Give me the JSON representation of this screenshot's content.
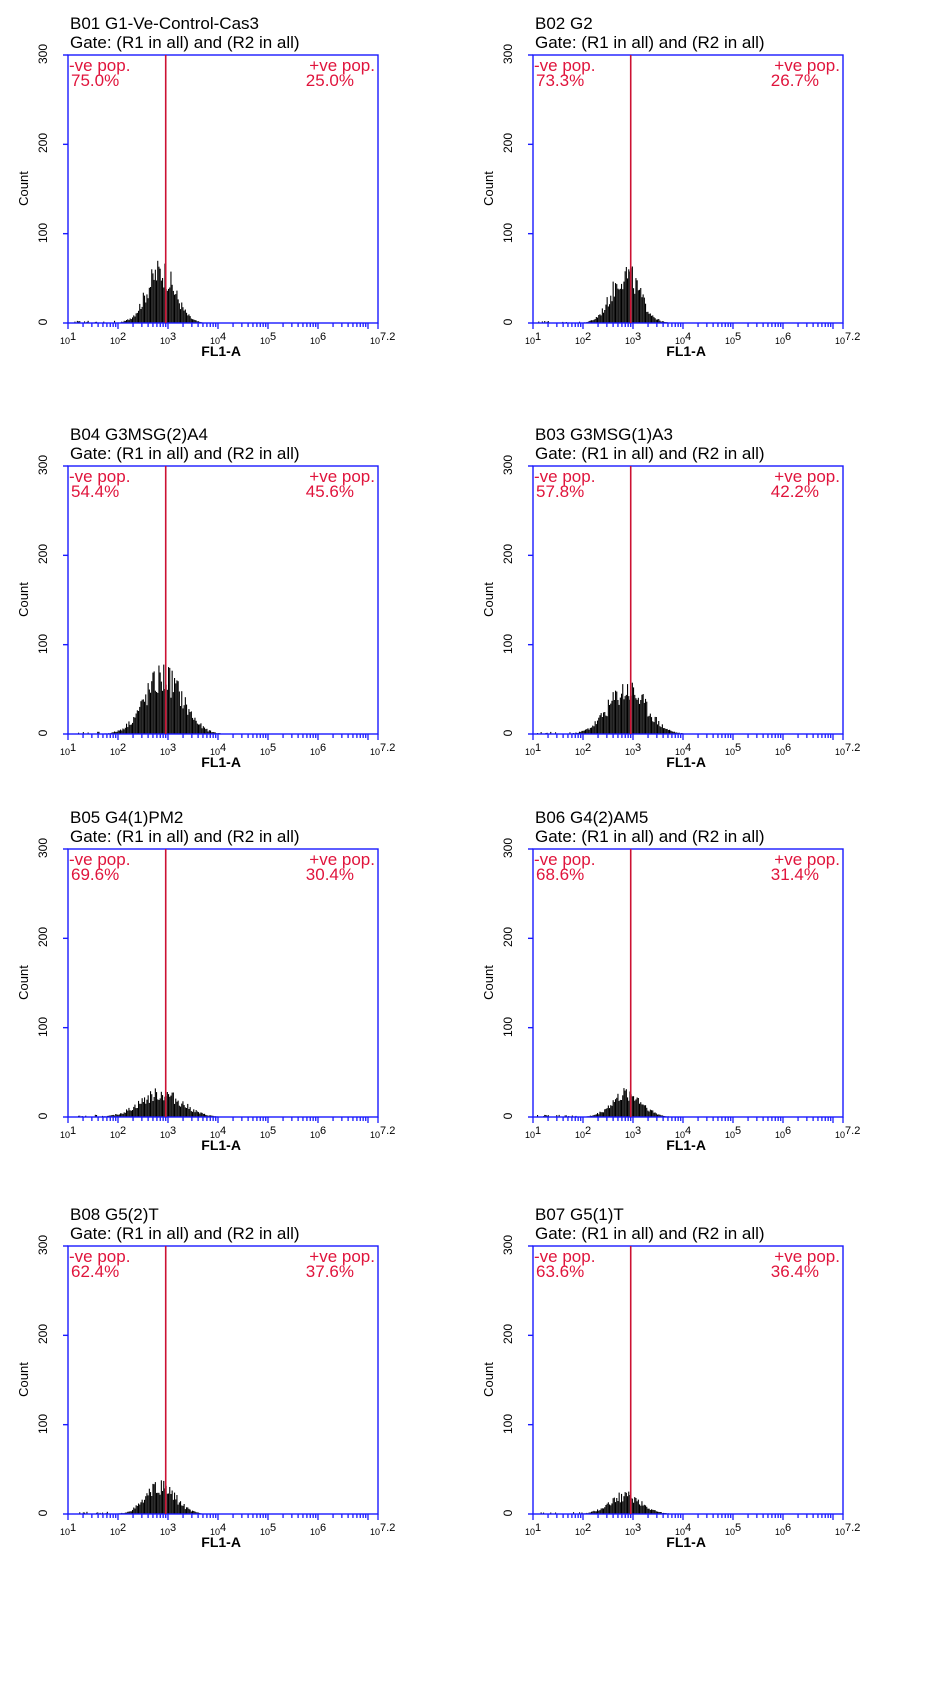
{
  "chart_data": [
    {
      "type": "histogram",
      "title": "B01 G1-Ve-Control-Cas3",
      "subtitle": "Gate: (R1 in all) and (R2 in all)",
      "xlabel": "FL1-A",
      "ylabel": "Count",
      "xscale": "log",
      "xlim": [
        10,
        15848932
      ],
      "ylim": [
        0,
        300
      ],
      "yticks": [
        "0",
        "100",
        "200",
        "300"
      ],
      "xticks": [
        "1",
        "2",
        "3",
        "4",
        "5",
        "6",
        "7.2"
      ],
      "gate": {
        "marker_x": 900,
        "neg_label": "-ve pop.",
        "neg_percent": "75.0%",
        "pos_label": "+ve pop.",
        "pos_percent": "25.0%"
      },
      "peak": {
        "center": 700,
        "height": 72,
        "spread": 0.28
      }
    },
    {
      "type": "histogram",
      "title": "B02 G2",
      "subtitle": "Gate: (R1 in all) and (R2 in all)",
      "xlabel": "FL1-A",
      "ylabel": "Count",
      "xscale": "log",
      "xlim": [
        10,
        15848932
      ],
      "ylim": [
        0,
        300
      ],
      "yticks": [
        "0",
        "100",
        "200",
        "300"
      ],
      "xticks": [
        "1",
        "2",
        "3",
        "4",
        "5",
        "6",
        "7.2"
      ],
      "gate": {
        "marker_x": 900,
        "neg_label": "-ve pop.",
        "neg_percent": "73.3%",
        "pos_label": "+ve pop.",
        "pos_percent": "26.7%"
      },
      "peak": {
        "center": 700,
        "height": 68,
        "spread": 0.28
      }
    },
    {
      "type": "histogram",
      "title": "B04 G3MSG(2)A4",
      "subtitle": "Gate: (R1 in all) and (R2 in all)",
      "xlabel": "FL1-A",
      "ylabel": "Count",
      "xscale": "log",
      "xlim": [
        10,
        15848932
      ],
      "ylim": [
        0,
        300
      ],
      "yticks": [
        "0",
        "100",
        "200",
        "300"
      ],
      "xticks": [
        "1",
        "2",
        "3",
        "4",
        "5",
        "6",
        "7.2"
      ],
      "gate": {
        "marker_x": 900,
        "neg_label": "-ve pop.",
        "neg_percent": "54.4%",
        "pos_label": "+ve pop.",
        "pos_percent": "45.6%"
      },
      "peak": {
        "center": 800,
        "height": 78,
        "spread": 0.38
      }
    },
    {
      "type": "histogram",
      "title": "B03 G3MSG(1)A3",
      "subtitle": "Gate: (R1 in all) and (R2 in all)",
      "xlabel": "FL1-A",
      "ylabel": "Count",
      "xscale": "log",
      "xlim": [
        10,
        15848932
      ],
      "ylim": [
        0,
        300
      ],
      "yticks": [
        "0",
        "100",
        "200",
        "300"
      ],
      "xticks": [
        "1",
        "2",
        "3",
        "4",
        "5",
        "6",
        "7.2"
      ],
      "gate": {
        "marker_x": 900,
        "neg_label": "-ve pop.",
        "neg_percent": "57.8%",
        "pos_label": "+ve pop.",
        "pos_percent": "42.2%"
      },
      "peak": {
        "center": 750,
        "height": 62,
        "spread": 0.38
      }
    },
    {
      "type": "histogram",
      "title": "B05 G4(1)PM2",
      "subtitle": "Gate: (R1 in all) and (R2 in all)",
      "xlabel": "FL1-A",
      "ylabel": "Count",
      "xscale": "log",
      "xlim": [
        10,
        15848932
      ],
      "ylim": [
        0,
        300
      ],
      "yticks": [
        "0",
        "100",
        "200",
        "300"
      ],
      "xticks": [
        "1",
        "2",
        "3",
        "4",
        "5",
        "6",
        "7.2"
      ],
      "gate": {
        "marker_x": 900,
        "neg_label": "-ve pop.",
        "neg_percent": "69.6%",
        "pos_label": "+ve pop.",
        "pos_percent": "30.4%"
      },
      "peak": {
        "center": 700,
        "height": 32,
        "spread": 0.42
      }
    },
    {
      "type": "histogram",
      "title": "B06 G4(2)AM5",
      "subtitle": "Gate: (R1 in all) and (R2 in all)",
      "xlabel": "FL1-A",
      "ylabel": "Count",
      "xscale": "log",
      "xlim": [
        10,
        15848932
      ],
      "ylim": [
        0,
        300
      ],
      "yticks": [
        "0",
        "100",
        "200",
        "300"
      ],
      "xticks": [
        "1",
        "2",
        "3",
        "4",
        "5",
        "6",
        "7.2"
      ],
      "gate": {
        "marker_x": 900,
        "neg_label": "-ve pop.",
        "neg_percent": "68.6%",
        "pos_label": "+ve pop.",
        "pos_percent": "31.4%"
      },
      "peak": {
        "center": 750,
        "height": 32,
        "spread": 0.3
      }
    },
    {
      "type": "histogram",
      "title": "B08 G5(2)T",
      "subtitle": "Gate: (R1 in all) and (R2 in all)",
      "xlabel": "FL1-A",
      "ylabel": "Count",
      "xscale": "log",
      "xlim": [
        10,
        15848932
      ],
      "ylim": [
        0,
        300
      ],
      "yticks": [
        "0",
        "100",
        "200",
        "300"
      ],
      "xticks": [
        "1",
        "2",
        "3",
        "4",
        "5",
        "6",
        "7.2"
      ],
      "gate": {
        "marker_x": 900,
        "neg_label": "-ve pop.",
        "neg_percent": "62.4%",
        "pos_label": "+ve pop.",
        "pos_percent": "37.6%"
      },
      "peak": {
        "center": 700,
        "height": 37,
        "spread": 0.3
      }
    },
    {
      "type": "histogram",
      "title": "B07 G5(1)T",
      "subtitle": "Gate: (R1 in all) and (R2 in all)",
      "xlabel": "FL1-A",
      "ylabel": "Count",
      "xscale": "log",
      "xlim": [
        10,
        15848932
      ],
      "ylim": [
        0,
        300
      ],
      "yticks": [
        "0",
        "100",
        "200",
        "300"
      ],
      "xticks": [
        "1",
        "2",
        "3",
        "4",
        "5",
        "6",
        "7.2"
      ],
      "gate": {
        "marker_x": 900,
        "neg_label": "-ve pop.",
        "neg_percent": "63.6%",
        "pos_label": "+ve pop.",
        "pos_percent": "36.4%"
      },
      "peak": {
        "center": 700,
        "height": 25,
        "spread": 0.32
      }
    }
  ],
  "colors": {
    "axis": "#1a1aff",
    "gate": "#cc1133",
    "gate_text": "#e0143c",
    "bars": "#000000"
  }
}
